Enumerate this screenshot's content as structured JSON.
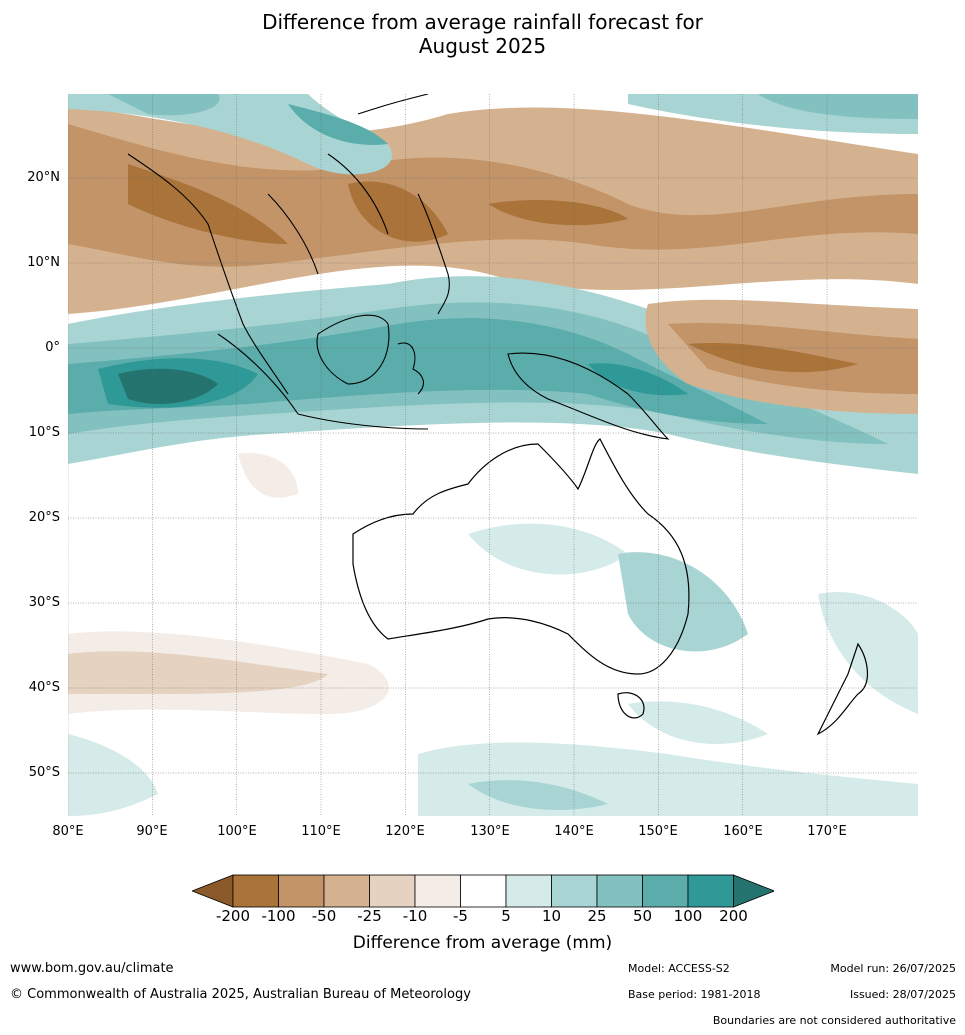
{
  "title_line1": "Difference from average rainfall forecast for",
  "title_line2": "August 2025",
  "lat_labels": [
    "20°N",
    "10°N",
    "0°",
    "10°S",
    "20°S",
    "30°S",
    "40°S",
    "50°S"
  ],
  "lon_labels": [
    "80°E",
    "90°E",
    "100°E",
    "110°E",
    "120°E",
    "130°E",
    "140°E",
    "150°E",
    "160°E",
    "170°E"
  ],
  "colorbar": {
    "ticks": [
      "-200",
      "-100",
      "-50",
      "-25",
      "-10",
      "-5",
      "5",
      "10",
      "25",
      "50",
      "100",
      "200"
    ],
    "colors": [
      "#8c5a2a",
      "#a9733a",
      "#c29468",
      "#d5b28f",
      "#e6d2c0",
      "#f4ece6",
      "#ffffff",
      "#d4ebea",
      "#a8d5d3",
      "#82c1bf",
      "#5aadab",
      "#2e9996",
      "#25736f"
    ],
    "title": "Difference from average (mm)"
  },
  "footer": {
    "url": "www.bom.gov.au/climate",
    "copyright": "© Commonwealth of Australia 2025, Australian Bureau of Meteorology",
    "model": "Model: ACCESS-S2",
    "base_period": "Base period: 1981-2018",
    "model_run": "Model run: 26/07/2025",
    "issued": "Issued: 28/07/2025",
    "disclaimer": "Boundaries are not considered authoritative"
  }
}
